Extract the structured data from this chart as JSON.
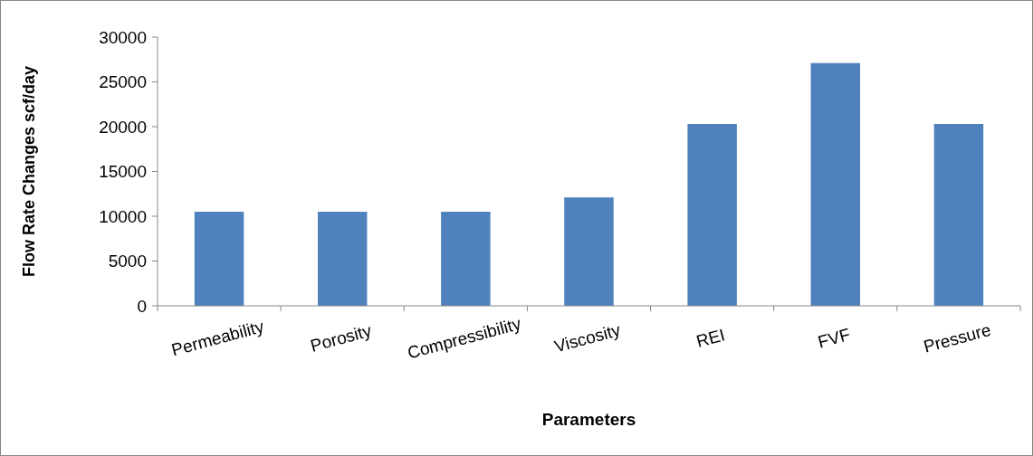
{
  "chart_data": {
    "type": "bar",
    "xlabel": "Parameters",
    "ylabel": "Flow Rate Changes scf/day",
    "categories": [
      "Permeability",
      "Porosity",
      "Compressibility",
      "Viscosity",
      "REI",
      "FVF",
      "Pressure"
    ],
    "values": [
      10500,
      10500,
      10500,
      12100,
      20300,
      27100,
      20300
    ],
    "color": "#4f81bd",
    "ylim": [
      0,
      30000
    ],
    "yticks": [
      0,
      5000,
      10000,
      15000,
      20000,
      25000,
      30000
    ],
    "grid": false
  }
}
